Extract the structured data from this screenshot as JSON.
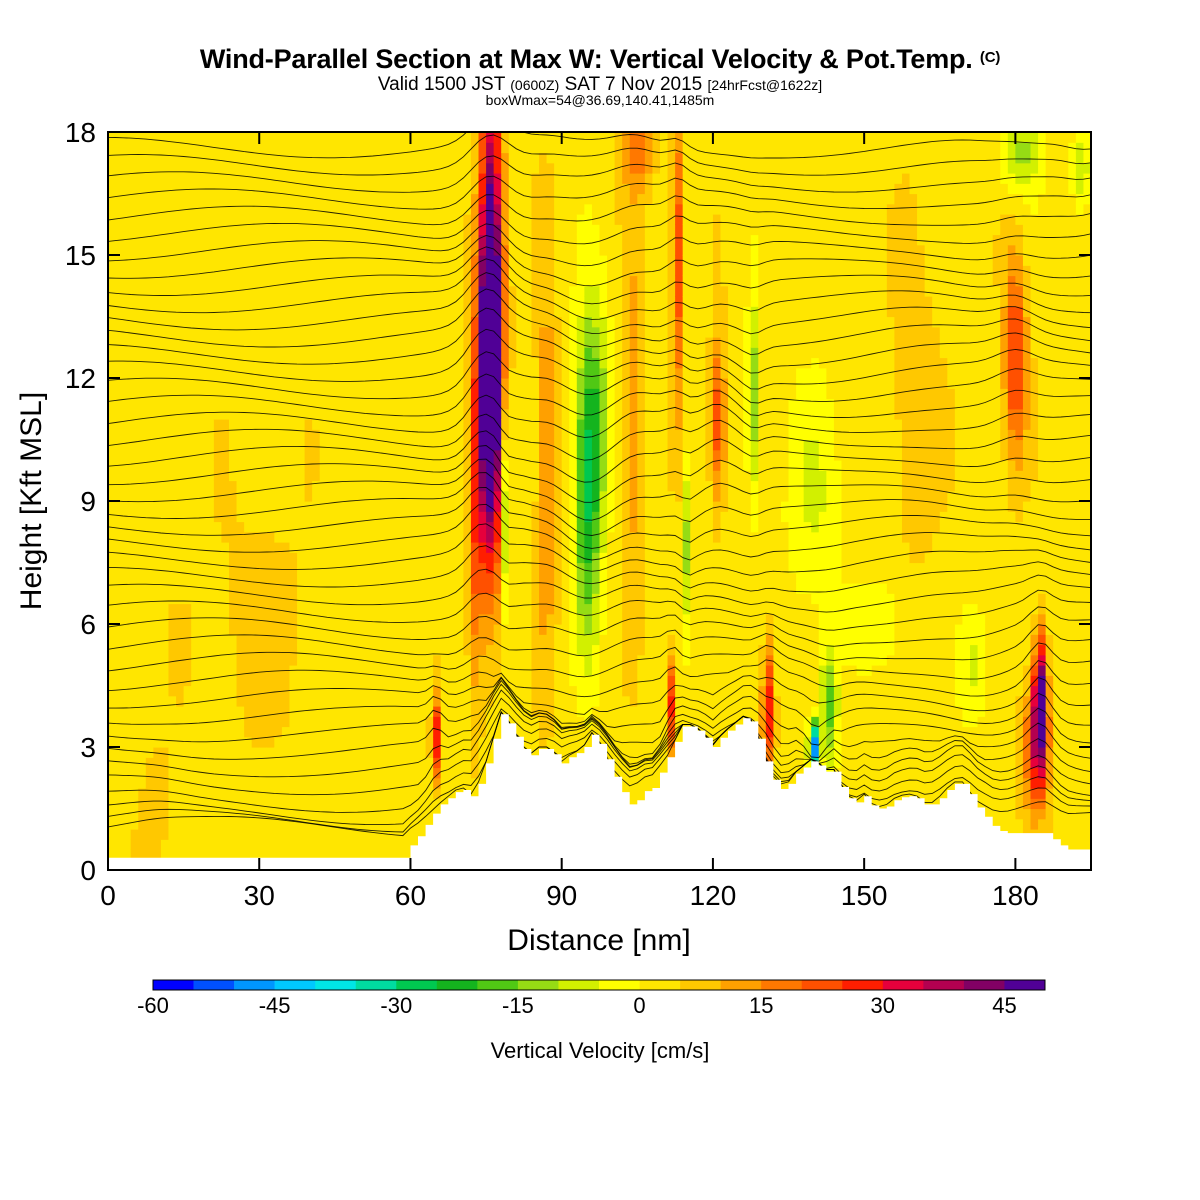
{
  "header": {
    "title": "Wind-Parallel Section at Max W: Vertical Velocity & Pot.Temp.",
    "copyright": "(C)",
    "valid_prefix": "Valid 1500 JST",
    "valid_utc": "(0600Z)",
    "valid_date": "SAT 7 Nov 2015",
    "forecast": "[24hrFcst@1622z]",
    "box_wmax": "boxWmax=54@36.69,140.41,1485m"
  },
  "chart_data": {
    "type": "heatmap",
    "xlabel": "Distance [nm]",
    "ylabel": "Height [Kft MSL]",
    "xlim": [
      0,
      195
    ],
    "ylim": [
      0,
      18
    ],
    "x_ticks": [
      "0",
      "30",
      "60",
      "90",
      "120",
      "150",
      "180"
    ],
    "x_tick_values": [
      0,
      30,
      60,
      90,
      120,
      150,
      180
    ],
    "y_ticks": [
      "0",
      "3",
      "6",
      "9",
      "12",
      "15",
      "18"
    ],
    "y_tick_values": [
      0,
      3,
      6,
      9,
      12,
      15,
      18
    ],
    "colorbar": {
      "label": "Vertical Velocity [cm/s]",
      "range": [
        -60,
        50
      ],
      "step": 5,
      "tick_labels": [
        "-60",
        "-45",
        "-30",
        "-15",
        "0",
        "15",
        "30",
        "45"
      ],
      "tick_values": [
        -60,
        -45,
        -30,
        -15,
        0,
        15,
        30,
        45
      ],
      "colors": [
        "#0000ff",
        "#0050ff",
        "#0096ff",
        "#00c8ff",
        "#00e6e6",
        "#00dca0",
        "#00c850",
        "#14b41e",
        "#50c814",
        "#96dc14",
        "#d2f000",
        "#ffff00",
        "#ffe600",
        "#ffc800",
        "#ffa000",
        "#ff7800",
        "#ff5000",
        "#ff1e00",
        "#e6003c",
        "#b40050",
        "#820064",
        "#500096"
      ]
    },
    "terrain_kft": [
      [
        0,
        0.3
      ],
      [
        59,
        0.3
      ],
      [
        60,
        0.6
      ],
      [
        62,
        0.9
      ],
      [
        64,
        1.3
      ],
      [
        66,
        1.6
      ],
      [
        68,
        1.8
      ],
      [
        70,
        2.0
      ],
      [
        72,
        1.8
      ],
      [
        74,
        2.2
      ],
      [
        76,
        3.0
      ],
      [
        78,
        3.8
      ],
      [
        80,
        3.5
      ],
      [
        82,
        3.0
      ],
      [
        84,
        2.8
      ],
      [
        86,
        3.0
      ],
      [
        88,
        2.9
      ],
      [
        90,
        2.6
      ],
      [
        92,
        2.8
      ],
      [
        94,
        2.9
      ],
      [
        96,
        3.3
      ],
      [
        98,
        3.0
      ],
      [
        100,
        2.4
      ],
      [
        102,
        1.9
      ],
      [
        104,
        1.5
      ],
      [
        106,
        1.9
      ],
      [
        108,
        2.0
      ],
      [
        110,
        2.5
      ],
      [
        112,
        3.0
      ],
      [
        114,
        3.5
      ],
      [
        116,
        3.5
      ],
      [
        118,
        3.3
      ],
      [
        120,
        3.0
      ],
      [
        122,
        3.3
      ],
      [
        124,
        3.5
      ],
      [
        126,
        3.7
      ],
      [
        128,
        3.6
      ],
      [
        130,
        2.8
      ],
      [
        132,
        2.2
      ],
      [
        134,
        1.9
      ],
      [
        136,
        2.3
      ],
      [
        138,
        2.5
      ],
      [
        140,
        2.7
      ],
      [
        142,
        2.4
      ],
      [
        144,
        2.4
      ],
      [
        146,
        1.9
      ],
      [
        148,
        1.6
      ],
      [
        150,
        1.8
      ],
      [
        152,
        1.5
      ],
      [
        154,
        1.5
      ],
      [
        156,
        1.7
      ],
      [
        158,
        1.8
      ],
      [
        160,
        1.8
      ],
      [
        162,
        1.6
      ],
      [
        164,
        1.6
      ],
      [
        166,
        1.9
      ],
      [
        168,
        2.1
      ],
      [
        170,
        2.1
      ],
      [
        172,
        1.6
      ],
      [
        174,
        1.3
      ],
      [
        176,
        1.0
      ],
      [
        178,
        0.9
      ],
      [
        180,
        0.9
      ],
      [
        182,
        0.9
      ],
      [
        184,
        0.9
      ],
      [
        186,
        0.9
      ],
      [
        188,
        0.7
      ],
      [
        190,
        0.5
      ],
      [
        195,
        0.5
      ]
    ],
    "features": [
      {
        "x": 65,
        "y": 3.2,
        "w": 0.8,
        "h": 1.0,
        "wms": 28
      },
      {
        "x": 76,
        "y": 14.0,
        "w": 2.2,
        "h": 5.5,
        "wms": 45
      },
      {
        "x": 75.5,
        "y": 11.5,
        "w": 2.8,
        "h": 4.5,
        "wms": 32
      },
      {
        "x": 79,
        "y": 9.0,
        "w": 1.0,
        "h": 2.5,
        "wms": -22
      },
      {
        "x": 73,
        "y": 8.0,
        "w": 1.2,
        "h": 4.0,
        "wms": 14
      },
      {
        "x": 96,
        "y": 11.0,
        "w": 3.2,
        "h": 3.0,
        "wms": -24
      },
      {
        "x": 95,
        "y": 8.0,
        "w": 2.5,
        "h": 3.0,
        "wms": -18
      },
      {
        "x": 104,
        "y": 11.0,
        "w": 2.0,
        "h": 4.0,
        "wms": 12
      },
      {
        "x": 87,
        "y": 10.0,
        "w": 2.0,
        "h": 5.0,
        "wms": 12
      },
      {
        "x": 113,
        "y": 15.0,
        "w": 1.2,
        "h": 3.5,
        "wms": 22
      },
      {
        "x": 112,
        "y": 4.0,
        "w": 0.8,
        "h": 1.2,
        "wms": 28
      },
      {
        "x": 115,
        "y": 8.0,
        "w": 0.9,
        "h": 2.0,
        "wms": -16
      },
      {
        "x": 121,
        "y": 11.0,
        "w": 1.5,
        "h": 2.0,
        "wms": 22
      },
      {
        "x": 128,
        "y": 11.5,
        "w": 1.2,
        "h": 2.5,
        "wms": -18
      },
      {
        "x": 131,
        "y": 4.0,
        "w": 1.2,
        "h": 1.6,
        "wms": 28
      },
      {
        "x": 140,
        "y": 3.0,
        "w": 1.0,
        "h": 0.6,
        "wms": -55
      },
      {
        "x": 143,
        "y": 4.0,
        "w": 1.8,
        "h": 1.5,
        "wms": -20
      },
      {
        "x": 140,
        "y": 9.0,
        "w": 6.0,
        "h": 3.0,
        "wms": -8
      },
      {
        "x": 180,
        "y": 12.5,
        "w": 2.2,
        "h": 2.5,
        "wms": 24
      },
      {
        "x": 185,
        "y": 4.2,
        "w": 1.3,
        "h": 1.6,
        "wms": 45
      },
      {
        "x": 184,
        "y": 3.0,
        "w": 2.5,
        "h": 1.5,
        "wms": 26
      },
      {
        "x": 181,
        "y": 17.5,
        "w": 4.0,
        "h": 1.0,
        "wms": -14
      },
      {
        "x": 193,
        "y": 17.0,
        "w": 2.0,
        "h": 1.0,
        "wms": -14
      },
      {
        "x": 105,
        "y": 17.5,
        "w": 3.0,
        "h": 1.0,
        "wms": 14
      },
      {
        "x": 30,
        "y": 6.0,
        "w": 12.0,
        "h": 3.0,
        "wms": 4
      },
      {
        "x": 10,
        "y": 1.5,
        "w": 3.0,
        "h": 1.5,
        "wms": 5
      },
      {
        "x": 50,
        "y": 3.5,
        "w": 6.0,
        "h": 1.5,
        "wms": -3
      },
      {
        "x": 155,
        "y": 6.0,
        "w": 6.0,
        "h": 1.5,
        "wms": -6
      },
      {
        "x": 172,
        "y": 5.0,
        "w": 3.0,
        "h": 1.5,
        "wms": -10
      },
      {
        "x": 160,
        "y": 11.0,
        "w": 5.0,
        "h": 4.0,
        "wms": 6
      }
    ]
  }
}
